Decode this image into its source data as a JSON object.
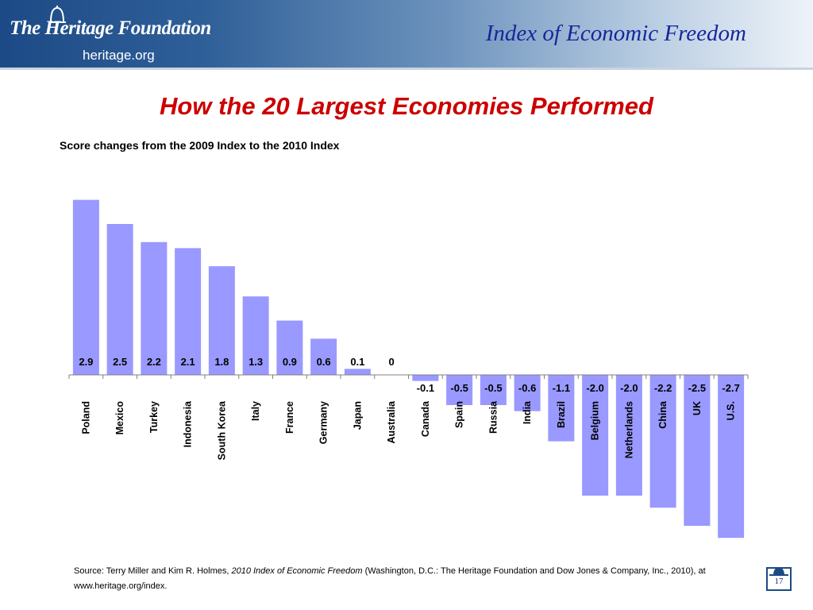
{
  "header": {
    "logo_title": "The Heritage Foundation",
    "logo_site": "heritage.org",
    "title": "Index of Economic Freedom"
  },
  "slide": {
    "title": "How the 20 Largest Economies Performed",
    "subtitle": "Score changes from the 2009 Index to the  2010 Index"
  },
  "footer": {
    "source_prefix": "Source: Terry Miller and Kim R. Holmes, ",
    "source_italic": "2010 Index of Economic Freedom",
    "source_suffix": "  (Washington, D.C.: The Heritage Foundation and Dow Jones & Company, Inc., 2010), at www.heritage.org/index.",
    "page_number": "17"
  },
  "colors": {
    "header_dark": "#1c4a86",
    "title_red": "#cc0000",
    "header_title_blue": "#17279a",
    "bar_fill": "#9999ff"
  },
  "chart_data": {
    "type": "bar",
    "categories": [
      "Poland",
      "Mexico",
      "Turkey",
      "Indonesia",
      "South Korea",
      "Italy",
      "France",
      "Germany",
      "Japan",
      "Australia",
      "Canada",
      "Spain",
      "Russia",
      "India",
      "Brazil",
      "Belgium",
      "Netherlands",
      "China",
      "UK",
      "U.S."
    ],
    "values": [
      2.9,
      2.5,
      2.2,
      2.1,
      1.8,
      1.3,
      0.9,
      0.6,
      0.1,
      0,
      -0.1,
      -0.5,
      -0.5,
      -0.6,
      -1.1,
      -2.0,
      -2.0,
      -2.2,
      -2.5,
      -2.7
    ],
    "data_labels": [
      "2.9",
      "2.5",
      "2.2",
      "2.1",
      "1.8",
      "1.3",
      "0.9",
      "0.6",
      "0.1",
      "0",
      "-0.1",
      "-0.5",
      "-0.5",
      "-0.6",
      "-1.1",
      "-2.0",
      "-2.0",
      "-2.2",
      "-2.5",
      "-2.7"
    ],
    "title": "How the 20 Largest Economies Performed",
    "subtitle": "Score changes from the 2009 Index to the  2010 Index",
    "ylim": [
      -2.7,
      2.9
    ],
    "grid": false,
    "legend": "none"
  }
}
